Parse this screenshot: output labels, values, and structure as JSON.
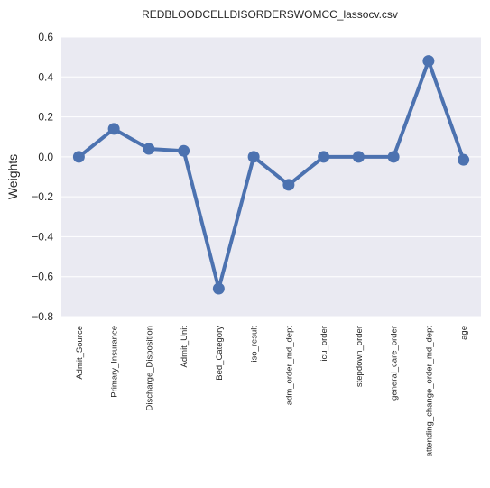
{
  "chart_data": {
    "type": "line",
    "title": "REDBLOODCELLDISORDERSWOMCC_lassocv.csv",
    "xlabel": "",
    "ylabel": "Weights",
    "categories": [
      "Admit_Source",
      "Primary_Insurance",
      "Discharge_Disposition",
      "Admit_Unit",
      "Bed_Category",
      "iso_result",
      "adm_order_md_dept",
      "icu_order",
      "stepdown_order",
      "general_care_order",
      "attending_change_order_md_dept",
      "age"
    ],
    "series": [
      {
        "values": [
          0.0,
          0.14,
          0.04,
          0.03,
          -0.66,
          0.0,
          -0.14,
          0.0,
          0.0,
          0.0,
          0.48,
          -0.015
        ]
      }
    ],
    "ylim": [
      -0.8,
      0.6
    ],
    "yticks": [
      -0.8,
      -0.6,
      -0.4,
      -0.2,
      0.0,
      0.2,
      0.4,
      0.6
    ],
    "ytick_labels": [
      "−0.8",
      "−0.6",
      "−0.4",
      "−0.2",
      "0.0",
      "0.2",
      "0.4",
      "0.6"
    ],
    "grid": true,
    "colors": {
      "background": "#eaeaf2",
      "grid": "#ffffff",
      "line": "#4c72b0"
    }
  }
}
